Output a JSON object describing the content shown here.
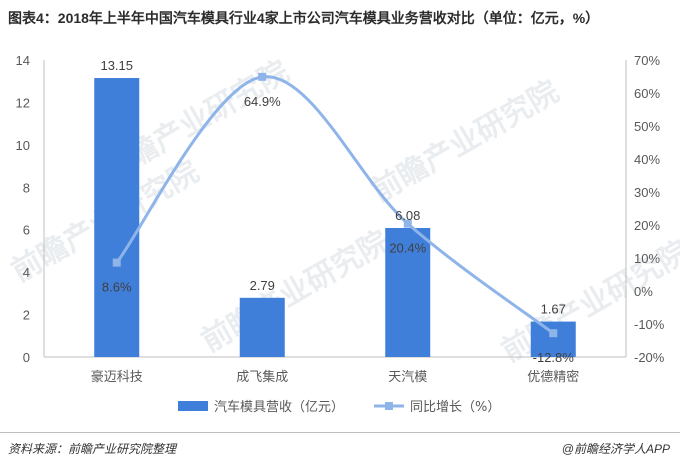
{
  "title": "图表4：2018年上半年中国汽车模具行业4家上市公司汽车模具业务营收对比（单位：亿元，%）",
  "source_label": "资料来源：前瞻产业研究院整理",
  "brand_label": "@前瞻经济学人APP",
  "watermark_text": "前瞻产业研究院",
  "colors": {
    "bar": "#3f7fd9",
    "line": "#8eb4ea",
    "axis": "#bfbfbf",
    "text": "#595959"
  },
  "chart_data": {
    "type": "bar",
    "categories": [
      "豪迈科技",
      "成飞集成",
      "天汽模",
      "优德精密"
    ],
    "series": [
      {
        "name": "汽车模具营收（亿元）",
        "type": "bar",
        "axis": "left",
        "values": [
          13.15,
          2.79,
          6.08,
          1.67
        ],
        "labels": [
          "13.15",
          "2.79",
          "6.08",
          "1.67"
        ]
      },
      {
        "name": "同比增长（%）",
        "type": "line",
        "axis": "right",
        "values": [
          8.6,
          64.9,
          20.4,
          -12.8
        ],
        "labels": [
          "8.6%",
          "64.9%",
          "20.4%",
          "-12.8%"
        ]
      }
    ],
    "y_left": {
      "min": 0,
      "max": 14,
      "ticks": [
        "0",
        "2",
        "4",
        "6",
        "8",
        "10",
        "12",
        "14"
      ]
    },
    "y_right": {
      "min": -20,
      "max": 70,
      "ticks": [
        "-20%",
        "-10%",
        "0%",
        "10%",
        "20%",
        "30%",
        "40%",
        "50%",
        "60%",
        "70%"
      ]
    },
    "legend": "bottom",
    "grid": false
  }
}
